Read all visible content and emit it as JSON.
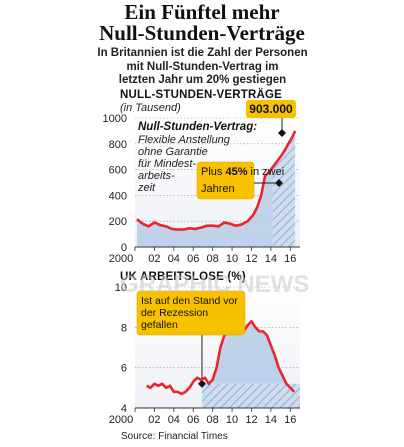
{
  "header": {
    "title_line1": "Ein Fünftel mehr",
    "title_line2": "Null-Stunden-Verträge",
    "subtitle_line1": "In Britannien ist die Zahl der Personen",
    "subtitle_line2": "mit Null-Stunden-Vertrag im",
    "subtitle_line3": "letzten Jahr um 20% gestiegen"
  },
  "footer": {
    "source": "Source: Financial Times"
  },
  "watermark": "GRAPHIC NEWS",
  "colors": {
    "line": "#e8262c",
    "area": "#b7cde8",
    "hatch": "#8fb0d8",
    "callout": "#f7c100",
    "grid": "#9a9a9a"
  },
  "chart_data": [
    {
      "type": "area",
      "title": "NULL-STUNDEN-VERTRÄGE",
      "ylabel": "(in Tausend)",
      "ylim": [
        0,
        1000
      ],
      "yticks": [
        "1000",
        "800",
        "600",
        "400",
        "200",
        "0"
      ],
      "xticks": [
        "2000",
        "02",
        "04",
        "06",
        "08",
        "10",
        "12",
        "14",
        "16"
      ],
      "x": [
        2000.2,
        2000.8,
        2001.4,
        2002.0,
        2002.6,
        2003.2,
        2003.8,
        2004.4,
        2005.0,
        2005.6,
        2006.2,
        2006.8,
        2007.4,
        2008.0,
        2008.6,
        2009.2,
        2009.8,
        2010.4,
        2011.0,
        2011.6,
        2012.2,
        2012.6,
        2013.0,
        2013.4,
        2013.8,
        2014.2,
        2014.6,
        2015.0,
        2015.4,
        2015.8,
        2016.2,
        2016.5
      ],
      "values": [
        215,
        180,
        160,
        190,
        170,
        160,
        140,
        135,
        135,
        145,
        140,
        150,
        165,
        165,
        160,
        190,
        180,
        165,
        175,
        200,
        250,
        310,
        400,
        550,
        580,
        620,
        660,
        700,
        745,
        800,
        850,
        900
      ],
      "title_annotation": "903.000",
      "annotations": [
        {
          "title": "Null-Stunden-Vertrag:",
          "lines": [
            "Flexible Anstellung",
            "ohne Garantie",
            "für Mindest-",
            "arbeits-",
            "zeit"
          ]
        },
        {
          "lines": [
            "Plus ",
            "45%",
            " in zwei",
            "Jahren"
          ]
        }
      ]
    },
    {
      "type": "line",
      "title": "UK ARBEITSLOSE (%)",
      "ylim": [
        4,
        10
      ],
      "yticks": [
        "10",
        "8",
        "6",
        "4"
      ],
      "xticks": [
        "2000",
        "02",
        "04",
        "06",
        "08",
        "10",
        "12",
        "14",
        "16"
      ],
      "x": [
        2001.2,
        2001.6,
        2002.0,
        2002.4,
        2002.8,
        2003.2,
        2003.6,
        2004.0,
        2004.4,
        2004.8,
        2005.2,
        2005.6,
        2006.0,
        2006.4,
        2006.8,
        2007.2,
        2007.6,
        2008.0,
        2008.4,
        2008.8,
        2009.2,
        2009.6,
        2010.0,
        2010.4,
        2010.8,
        2011.2,
        2011.6,
        2012.0,
        2012.4,
        2012.8,
        2013.2,
        2013.6,
        2014.0,
        2014.4,
        2014.8,
        2015.2,
        2015.6,
        2016.0,
        2016.4
      ],
      "values": [
        5.1,
        5.0,
        5.2,
        5.1,
        5.2,
        5.0,
        5.1,
        4.8,
        4.8,
        4.7,
        4.8,
        5.0,
        5.3,
        5.5,
        5.4,
        5.5,
        5.2,
        5.4,
        6.0,
        7.0,
        7.6,
        7.8,
        7.9,
        7.8,
        7.9,
        7.8,
        8.1,
        8.3,
        8.0,
        7.8,
        7.8,
        7.6,
        7.1,
        6.6,
        6.0,
        5.6,
        5.2,
        5.0,
        4.8
      ],
      "annotations": [
        {
          "lines": [
            "Ist auf den Stand vor",
            "der Rezession",
            "gefallen"
          ]
        }
      ]
    }
  ]
}
